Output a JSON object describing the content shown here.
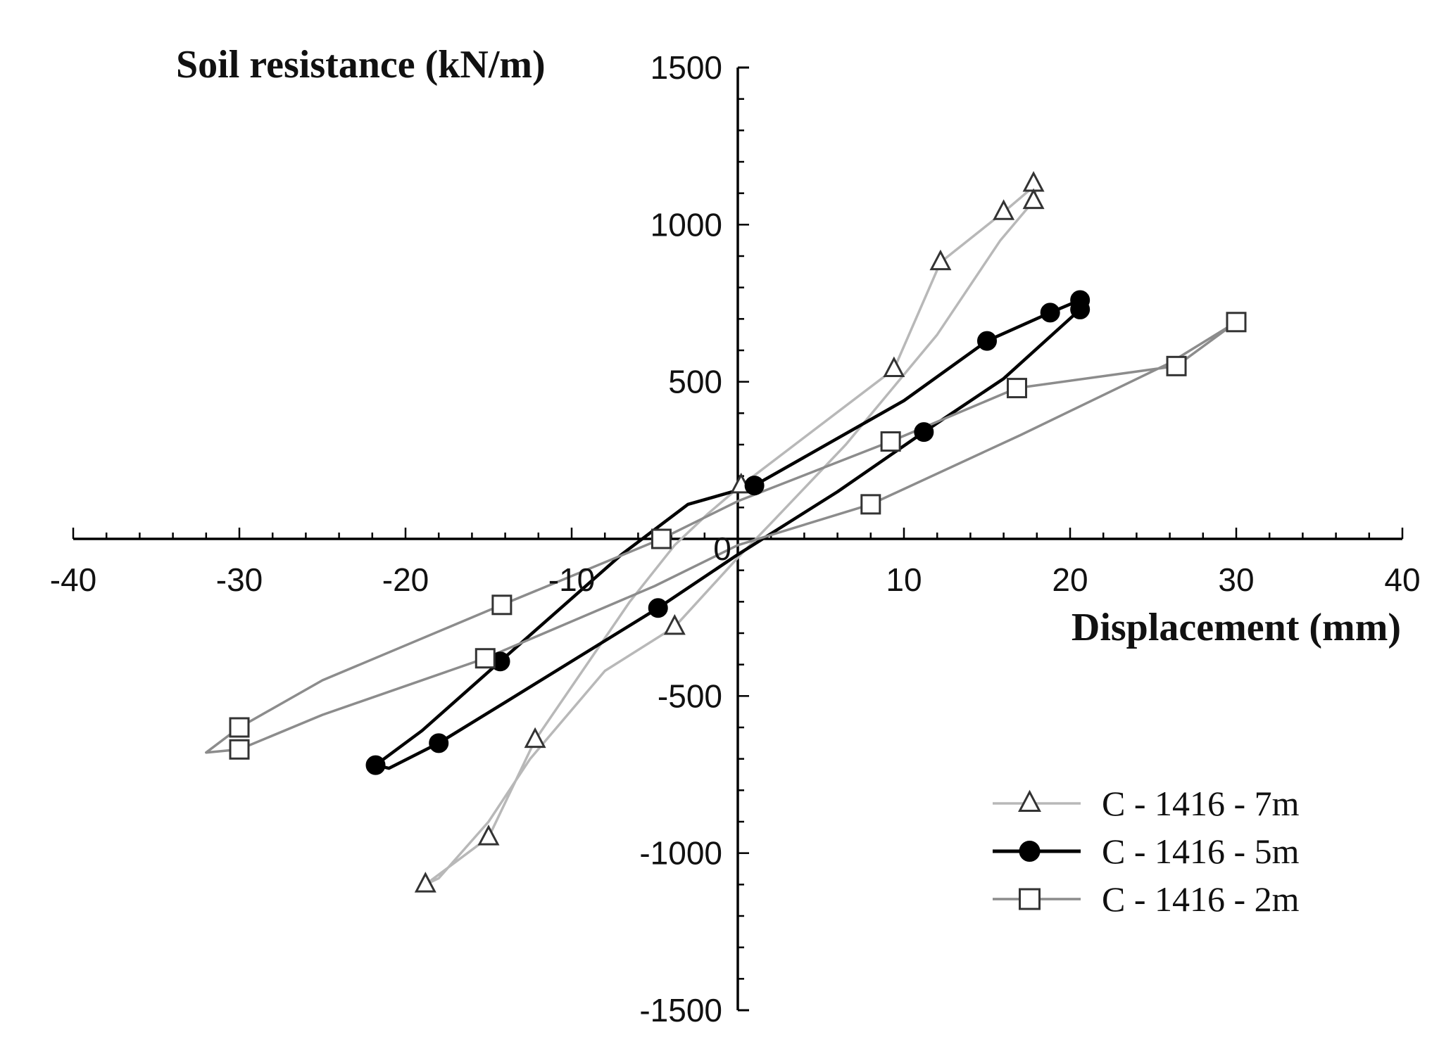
{
  "chart_data": {
    "type": "line",
    "title": "",
    "xlabel": "Displacement (mm)",
    "ylabel": "Soil resistance (kN/m)",
    "xlim": [
      -40,
      40
    ],
    "ylim": [
      -1500,
      1500
    ],
    "x_ticks": [
      -40,
      -30,
      -20,
      -10,
      0,
      10,
      20,
      30,
      40
    ],
    "y_ticks": [
      -1500,
      -1000,
      -500,
      0,
      500,
      1000,
      1500
    ],
    "x_tick_labels": [
      "-40",
      "-30",
      "-20",
      "-10",
      "0",
      "10",
      "20",
      "30",
      "40"
    ],
    "y_tick_labels": [
      "-1500",
      "-1000",
      "-500",
      "",
      "500",
      "1000",
      "1500"
    ],
    "origin_label": "0",
    "grid": false,
    "legend_position": "bottom-right",
    "series": [
      {
        "name": "C - 1416 - 7m",
        "color": "#b8b8b8",
        "marker_style": "triangle",
        "marker_color": "#333333",
        "line_x": [
          18.0,
          16.0,
          12.2,
          9.4,
          0.2,
          -1.8,
          -3.8,
          -6.5,
          -12.2,
          -15.0,
          -18.8,
          -18.0,
          -15.0,
          -12.5,
          -8.0,
          -3.8,
          0.0,
          2.0,
          6.5,
          12.0,
          15.8,
          17.8,
          18.0
        ],
        "line_y": [
          1130,
          1040,
          880,
          540,
          170,
          80,
          -20,
          -200,
          -640,
          -950,
          -1100,
          -1080,
          -900,
          -700,
          -420,
          -280,
          -60,
          50,
          300,
          650,
          950,
          1075,
          1130
        ],
        "marker_x": [
          17.8,
          16.0,
          12.2,
          9.4,
          0.2,
          -3.8,
          -12.2,
          -15.0,
          -18.8,
          17.8
        ],
        "marker_y": [
          1130,
          1040,
          880,
          540,
          170,
          -280,
          -640,
          -950,
          -1100,
          1075
        ]
      },
      {
        "name": "C - 1416 - 5m",
        "color": "#000000",
        "marker_style": "filled-circle",
        "marker_color": "#000000",
        "line_x": [
          20.6,
          18.8,
          15.0,
          10.0,
          1.0,
          -3.0,
          -7.0,
          -14.3,
          -19.0,
          -21.8,
          -21.0,
          -18.0,
          -14.0,
          -4.8,
          0.0,
          6.0,
          11.2,
          16.0,
          20.6,
          20.6
        ],
        "line_y": [
          760,
          720,
          630,
          440,
          170,
          110,
          -50,
          -390,
          -610,
          -720,
          -730,
          -650,
          -520,
          -220,
          -50,
          150,
          340,
          510,
          730,
          760
        ],
        "marker_x": [
          20.6,
          18.8,
          15.0,
          1.0,
          -14.3,
          -21.8,
          -18.0,
          -4.8,
          11.2,
          20.6
        ],
        "marker_y": [
          760,
          720,
          630,
          170,
          -390,
          -720,
          -650,
          -220,
          340,
          730
        ]
      },
      {
        "name": "C - 1416 - 2m",
        "color": "#8c8c8c",
        "marker_style": "open-square",
        "marker_color": "#333333",
        "line_x": [
          30.0,
          26.4,
          16.8,
          9.2,
          0.0,
          -4.6,
          -14.2,
          -25.0,
          -30.0,
          -32.0,
          -30.0,
          -25.0,
          -15.2,
          -5.0,
          0.0,
          8.0,
          17.0,
          26.0,
          30.0
        ],
        "line_y": [
          690,
          550,
          480,
          310,
          120,
          0,
          -210,
          -450,
          -600,
          -680,
          -670,
          -560,
          -380,
          -150,
          -20,
          110,
          330,
          560,
          690
        ],
        "marker_x": [
          30.0,
          26.4,
          16.8,
          9.2,
          -4.6,
          -14.2,
          -30.0,
          -30.0,
          -15.2,
          8.0
        ],
        "marker_y": [
          690,
          550,
          480,
          310,
          0,
          -210,
          -600,
          -670,
          -380,
          110
        ]
      }
    ]
  }
}
